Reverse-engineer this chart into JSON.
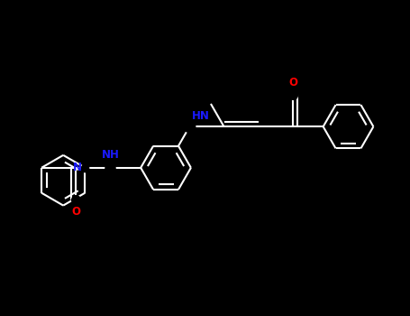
{
  "bg_color": "#000000",
  "line_color": "#ffffff",
  "heteroatom_color": "#1a1aff",
  "oxygen_color": "#ff0000",
  "bond_width": 1.5,
  "font_size": 8.5,
  "figsize": [
    4.55,
    3.5
  ],
  "dpi": 100,
  "xlim": [
    0.0,
    10.0
  ],
  "ylim": [
    0.0,
    7.5
  ]
}
